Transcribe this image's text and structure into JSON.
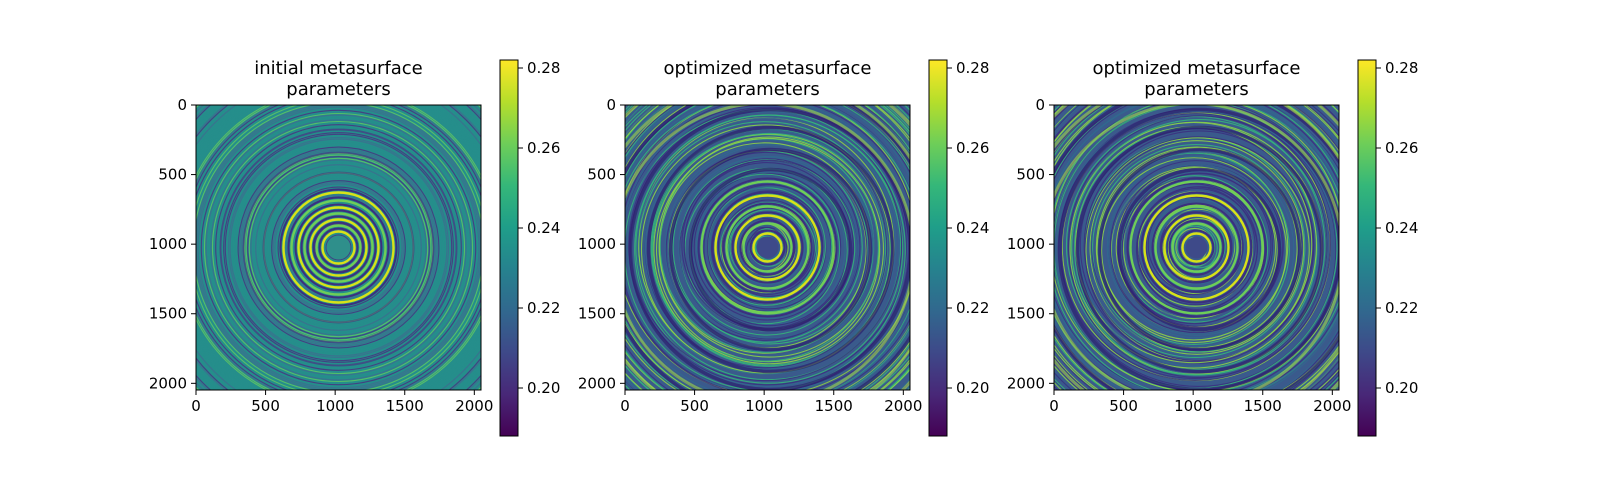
{
  "chart_data": [
    {
      "type": "heatmap",
      "title": "initial metasurface\nparameters",
      "x_ticks": [
        0,
        500,
        1000,
        1500,
        2000
      ],
      "y_ticks": [
        0,
        500,
        1000,
        1500,
        2000
      ],
      "xlim": [
        0,
        2048
      ],
      "ylim": [
        2048,
        0
      ],
      "center": [
        1024,
        1024
      ],
      "colorbar": {
        "range": [
          0.188,
          0.282
        ],
        "ticks": [
          0.2,
          0.22,
          0.24,
          0.26,
          0.28
        ],
        "tick_labels": [
          "0.20",
          "0.22",
          "0.24",
          "0.26",
          "0.28"
        ]
      }
    },
    {
      "type": "heatmap",
      "title": "optimized metasurface\nparameters",
      "x_ticks": [
        0,
        500,
        1000,
        1500,
        2000
      ],
      "y_ticks": [
        0,
        500,
        1000,
        1500,
        2000
      ],
      "xlim": [
        0,
        2048
      ],
      "ylim": [
        2048,
        0
      ],
      "center": [
        1024,
        1024
      ],
      "colorbar": {
        "range": [
          0.188,
          0.282
        ],
        "ticks": [
          0.2,
          0.22,
          0.24,
          0.26,
          0.28
        ],
        "tick_labels": [
          "0.20",
          "0.22",
          "0.24",
          "0.26",
          "0.28"
        ]
      }
    },
    {
      "type": "heatmap",
      "title": "optimized metasurface\nparameters",
      "x_ticks": [
        0,
        500,
        1000,
        1500,
        2000
      ],
      "y_ticks": [
        0,
        500,
        1000,
        1500,
        2000
      ],
      "xlim": [
        0,
        2048
      ],
      "ylim": [
        2048,
        0
      ],
      "center": [
        1024,
        1024
      ],
      "colorbar": {
        "range": [
          0.188,
          0.282
        ],
        "ticks": [
          0.2,
          0.22,
          0.24,
          0.26,
          0.28
        ],
        "tick_labels": [
          "0.20",
          "0.22",
          "0.24",
          "0.26",
          "0.28"
        ]
      }
    }
  ],
  "colors": {
    "viridis": [
      "#440154",
      "#482878",
      "#3e4989",
      "#31688e",
      "#26828e",
      "#1f9e89",
      "#35b779",
      "#6ece58",
      "#b5de2b",
      "#fde725"
    ],
    "ring_bright": "#d8e219",
    "ring_mid": "#22a884",
    "ring_dark": "#3b2f7f"
  }
}
